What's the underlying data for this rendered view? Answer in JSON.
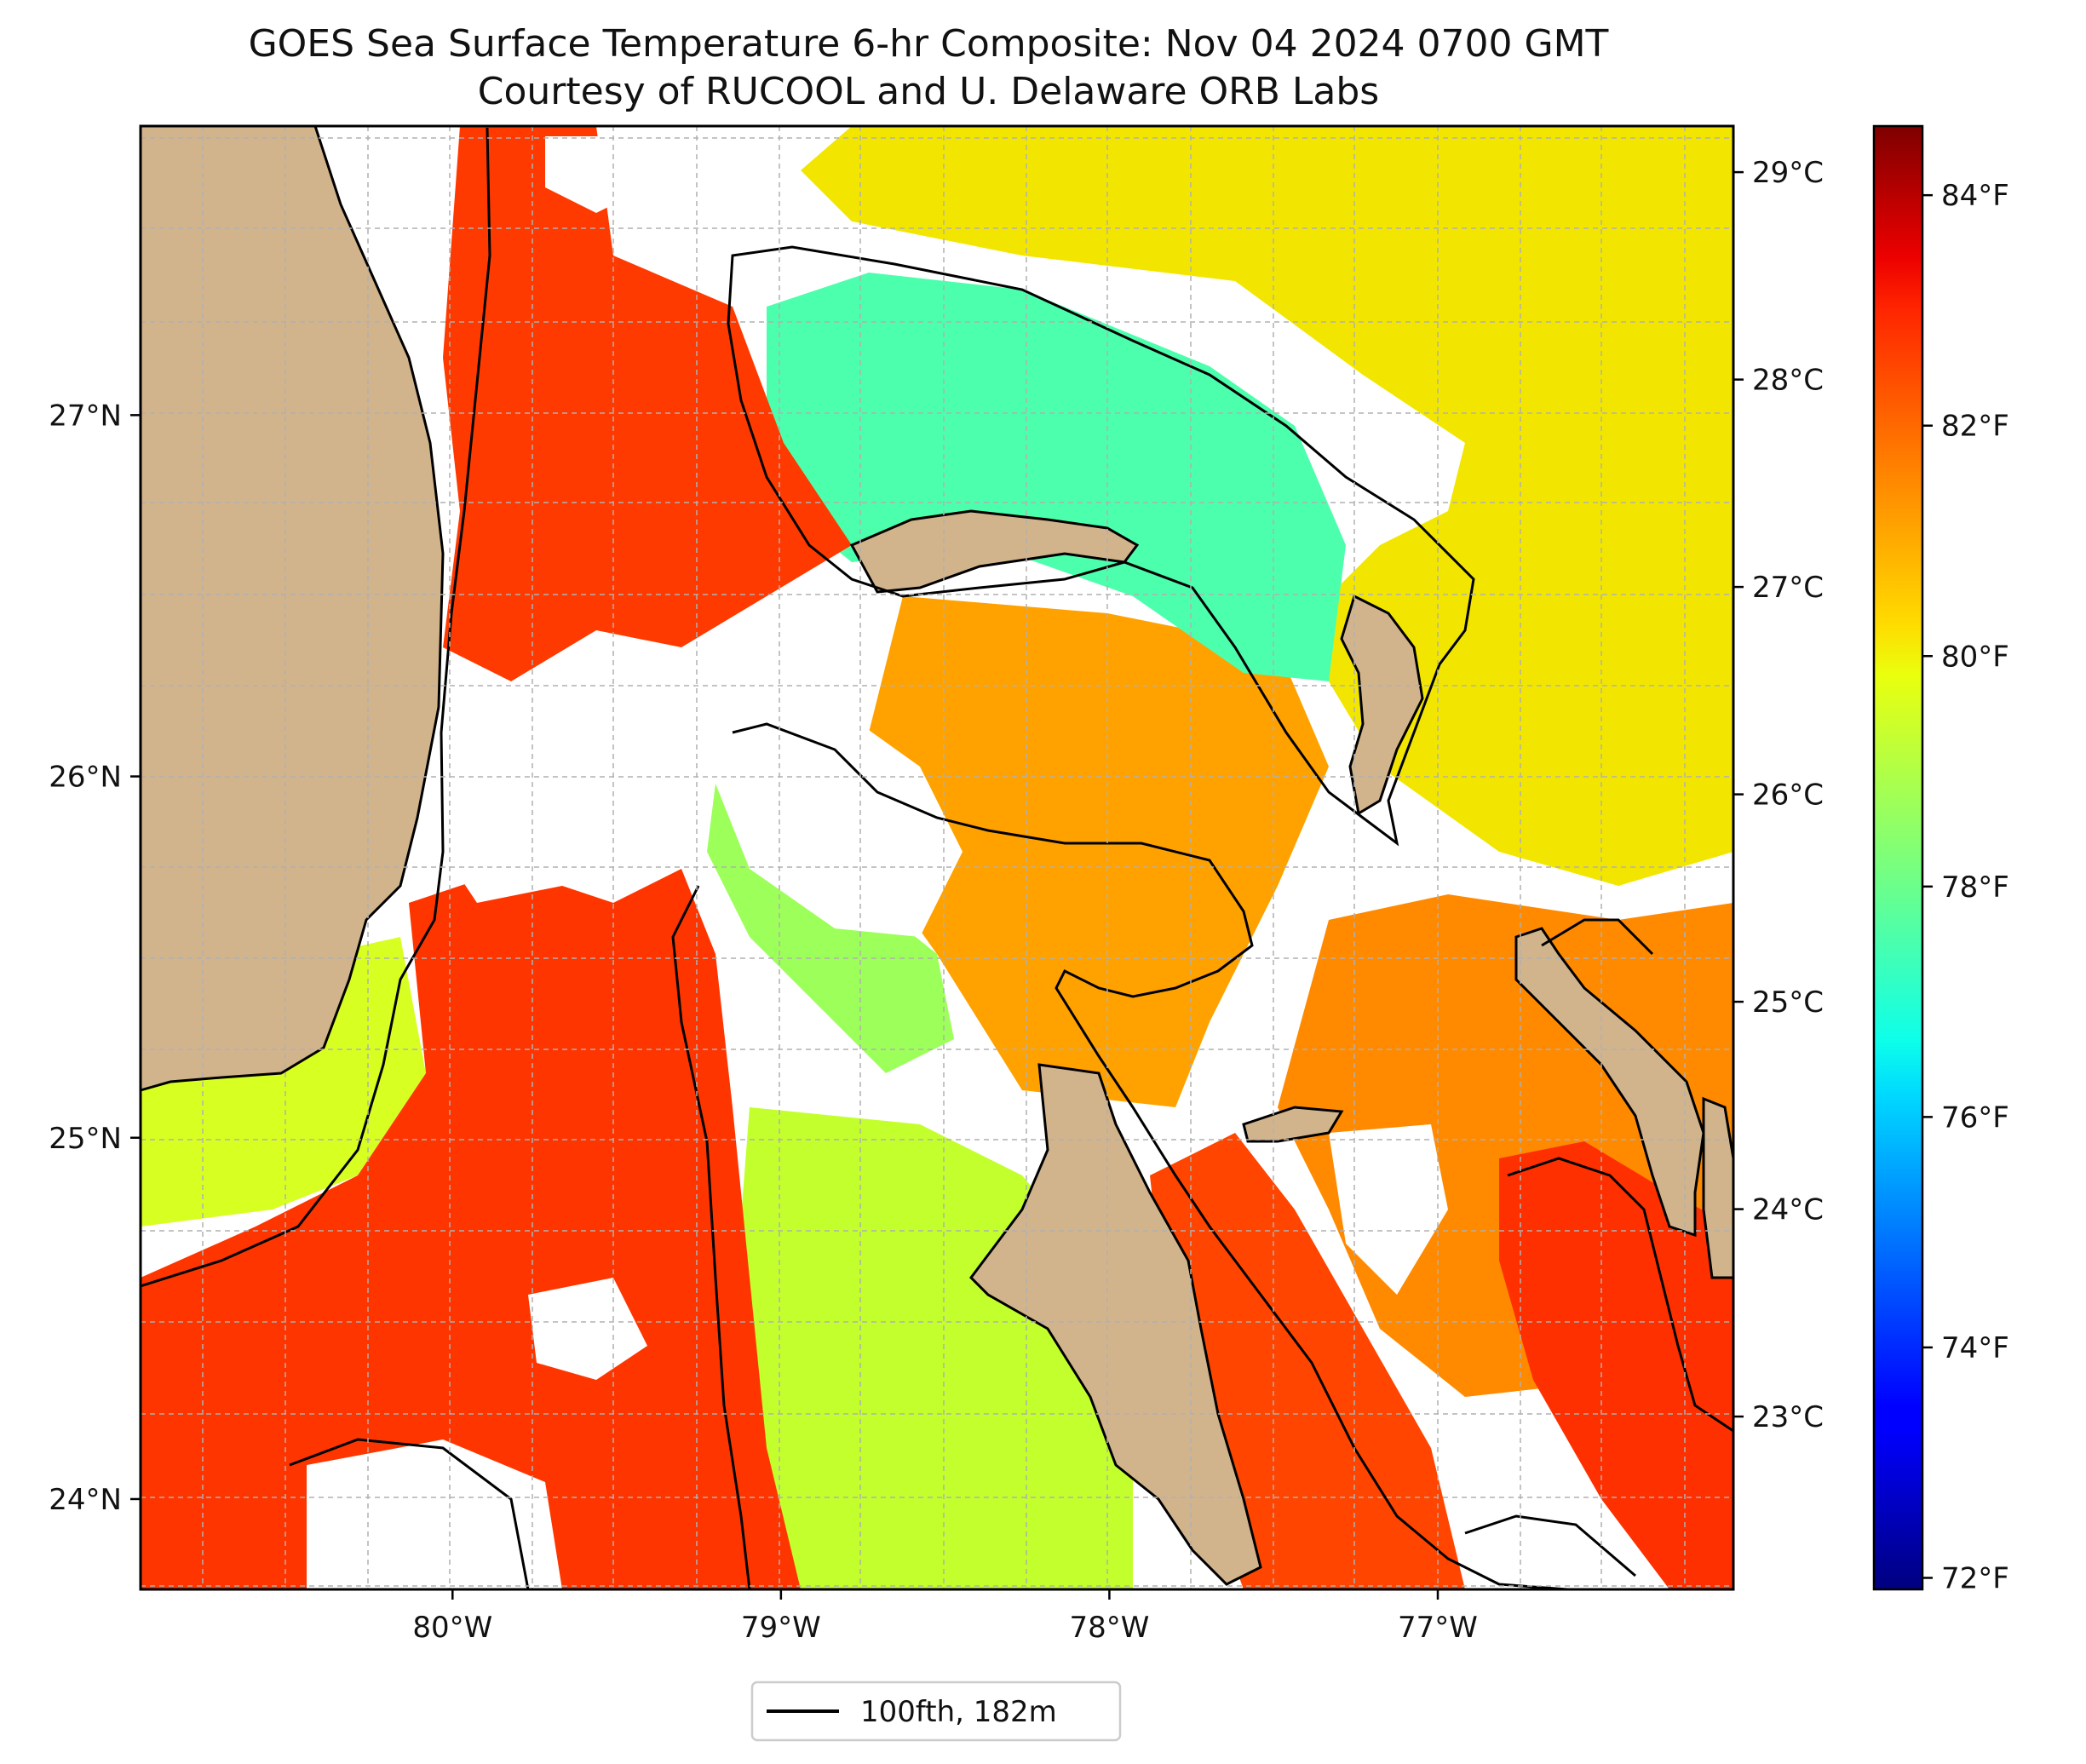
{
  "title": {
    "line1": "GOES Sea Surface Temperature 6-hr Composite: Nov 04 2024 0700 GMT",
    "line2": "Courtesy of RUCOOL and U. Delaware ORB Labs"
  },
  "map": {
    "lon_range": [
      -80.95,
      -76.1
    ],
    "lat_range": [
      23.75,
      27.8
    ],
    "lat_ticks": [
      {
        "value": 27,
        "label": "27°N"
      },
      {
        "value": 26,
        "label": "26°N"
      },
      {
        "value": 25,
        "label": "25°N"
      },
      {
        "value": 24,
        "label": "24°N"
      }
    ],
    "lon_ticks": [
      {
        "value": -80,
        "label": "80°W"
      },
      {
        "value": -79,
        "label": "79°W"
      },
      {
        "value": -78,
        "label": "78°W"
      },
      {
        "value": -77,
        "label": "77°W"
      }
    ],
    "gridlines": true,
    "colors": {
      "land": "#d2b48c",
      "no_data": "#ffffff",
      "contour": "#000000",
      "grid": "#b0b0b0"
    }
  },
  "celsius_axis": [
    {
      "value": 29,
      "label": "29°C"
    },
    {
      "value": 28,
      "label": "28°C"
    },
    {
      "value": 27,
      "label": "27°C"
    },
    {
      "value": 26,
      "label": "26°C"
    },
    {
      "value": 25,
      "label": "25°C"
    },
    {
      "value": 24,
      "label": "24°C"
    },
    {
      "value": 23,
      "label": "23°C"
    }
  ],
  "colorbar": {
    "range_f": [
      71.9,
      84.6
    ],
    "colormap": "jet",
    "ticks": [
      {
        "value": 84,
        "label": "84°F"
      },
      {
        "value": 82,
        "label": "82°F"
      },
      {
        "value": 80,
        "label": "80°F"
      },
      {
        "value": 78,
        "label": "78°F"
      },
      {
        "value": 76,
        "label": "76°F"
      },
      {
        "value": 74,
        "label": "74°F"
      },
      {
        "value": 72,
        "label": "72°F"
      }
    ]
  },
  "legend": {
    "label": "100fth, 182m",
    "position": "bottom-center"
  }
}
